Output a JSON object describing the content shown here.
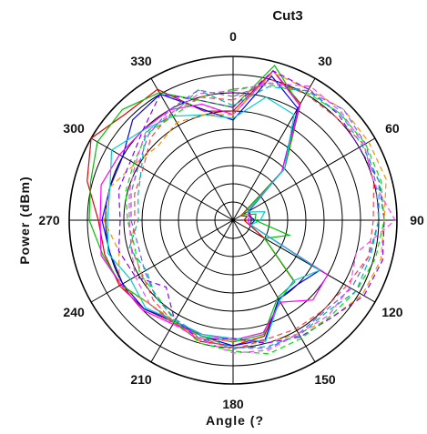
{
  "chart_data": {
    "type": "polar-line",
    "title": "Cut3",
    "xlabel": "Angle (?",
    "ylabel": "Power (dBm)",
    "angle_direction": "counterclockwise",
    "zero_location": "top",
    "angle_ticks": [
      0,
      30,
      60,
      90,
      120,
      150,
      180,
      210,
      240,
      270,
      300,
      330
    ],
    "angle_tick_labels": [
      "0",
      "330",
      "300",
      "270",
      "240",
      "210",
      "180",
      "150",
      "120",
      "90",
      "60",
      "30"
    ],
    "rings": 9,
    "grid": true,
    "legend": "none",
    "angles": [
      0,
      15,
      30,
      45,
      60,
      75,
      90,
      105,
      120,
      135,
      150,
      165,
      180,
      195,
      210,
      225,
      240,
      255,
      270,
      285,
      300,
      315,
      330,
      345
    ],
    "series": [
      {
        "color": "#e00000",
        "style": "solid",
        "values": [
          6.0,
          6.2,
          8.3,
          8.3,
          9.0,
          8.3,
          7.4,
          7.3,
          7.2,
          6.9,
          6.5,
          6.9,
          6.9,
          6.6,
          5.1,
          4.7,
          2.0,
          0.9,
          0.6,
          0.8,
          0.5,
          4.0,
          7.4,
          8.5
        ]
      },
      {
        "color": "#0000ff",
        "style": "solid",
        "values": [
          5.5,
          6.3,
          8.0,
          7.8,
          7.0,
          7.0,
          7.2,
          7.0,
          7.0,
          6.9,
          6.4,
          6.6,
          6.9,
          6.8,
          5.0,
          5.0,
          5.5,
          1.0,
          1.2,
          0.9,
          1.0,
          3.8,
          7.1,
          8.2
        ]
      },
      {
        "color": "#00c000",
        "style": "solid",
        "values": [
          6.2,
          6.8,
          8.1,
          8.6,
          8.6,
          8.1,
          7.9,
          7.4,
          7.1,
          6.5,
          6.5,
          6.6,
          6.7,
          6.5,
          4.9,
          4.8,
          2.0,
          3.2,
          1.2,
          1.3,
          0.6,
          4.0,
          7.3,
          8.8
        ]
      },
      {
        "color": "#ff00ff",
        "style": "solid",
        "values": [
          5.8,
          6.6,
          7.0,
          7.0,
          7.2,
          7.5,
          7.3,
          7.5,
          7.1,
          7.0,
          6.6,
          6.5,
          6.6,
          6.4,
          5.2,
          6.2,
          6.0,
          1.0,
          0.8,
          1.0,
          0.9,
          3.8,
          7.3,
          8.5
        ]
      },
      {
        "color": "#00cccc",
        "style": "solid",
        "values": [
          5.6,
          6.0,
          6.6,
          7.0,
          7.7,
          7.0,
          6.9,
          7.1,
          6.5,
          6.8,
          6.4,
          6.5,
          6.5,
          6.9,
          5.1,
          4.7,
          5.5,
          1.0,
          1.5,
          1.8,
          0.9,
          4.0,
          6.7,
          7.0
        ]
      },
      {
        "color": "#ff8c00",
        "style": "dashed",
        "values": [
          5.8,
          6.0,
          6.2,
          5.8,
          6.2,
          7.0,
          7.1,
          6.5,
          7.2,
          6.5,
          6.4,
          6.9,
          6.6,
          7.0,
          7.2,
          7.6,
          8.2,
          8.4,
          8.3,
          8.7,
          8.6,
          8.6,
          8.3,
          8.4
        ]
      },
      {
        "color": "#8000ff",
        "style": "dashed",
        "values": [
          6.2,
          6.8,
          8.0,
          7.0,
          6.5,
          6.5,
          6.2,
          6.5,
          6.2,
          5.2,
          6.4,
          6.8,
          6.5,
          7.0,
          7.4,
          7.6,
          8.3,
          8.5,
          8.3,
          8.3,
          8.0,
          8.2,
          8.3,
          8.5
        ]
      },
      {
        "color": "#00e000",
        "style": "dashed",
        "values": [
          7.2,
          7.0,
          6.6,
          6.7,
          6.3,
          6.1,
          5.8,
          5.6,
          5.9,
          5.9,
          6.4,
          7.0,
          7.2,
          7.6,
          7.5,
          7.5,
          7.8,
          8.1,
          8.3,
          8.4,
          8.4,
          8.3,
          8.1,
          7.7
        ]
      },
      {
        "color": "#6060ff",
        "style": "dashed",
        "values": [
          6.8,
          7.4,
          7.0,
          6.6,
          6.0,
          5.8,
          5.6,
          5.4,
          5.6,
          6.0,
          6.3,
          6.8,
          7.0,
          7.3,
          7.2,
          7.1,
          7.5,
          7.7,
          8.0,
          8.1,
          8.4,
          8.6,
          8.2,
          7.8
        ]
      },
      {
        "color": "#ff4040",
        "style": "dashed",
        "values": [
          6.6,
          7.0,
          6.8,
          6.4,
          5.7,
          5.6,
          5.4,
          5.8,
          5.8,
          6.2,
          6.5,
          6.7,
          7.1,
          6.8,
          6.9,
          7.0,
          7.2,
          7.7,
          7.7,
          8.0,
          8.3,
          8.0,
          8.0,
          8.0
        ]
      },
      {
        "color": "#ff40ff",
        "style": "dashed",
        "values": [
          7.1,
          7.2,
          6.8,
          6.8,
          6.2,
          5.9,
          5.7,
          5.8,
          6.2,
          6.5,
          6.6,
          6.8,
          7.3,
          7.4,
          7.2,
          7.4,
          7.4,
          7.0,
          8.9,
          8.0,
          8.3,
          8.4,
          8.5,
          7.8
        ]
      },
      {
        "color": "#00b0b0",
        "style": "dashed",
        "values": [
          6.3,
          7.4,
          6.7,
          6.8,
          5.8,
          5.4,
          5.2,
          5.9,
          5.5,
          6.0,
          6.3,
          6.6,
          7.0,
          7.2,
          7.3,
          7.2,
          7.8,
          7.8,
          8.0,
          8.3,
          8.2,
          8.3,
          8.2,
          7.6
        ]
      }
    ]
  }
}
